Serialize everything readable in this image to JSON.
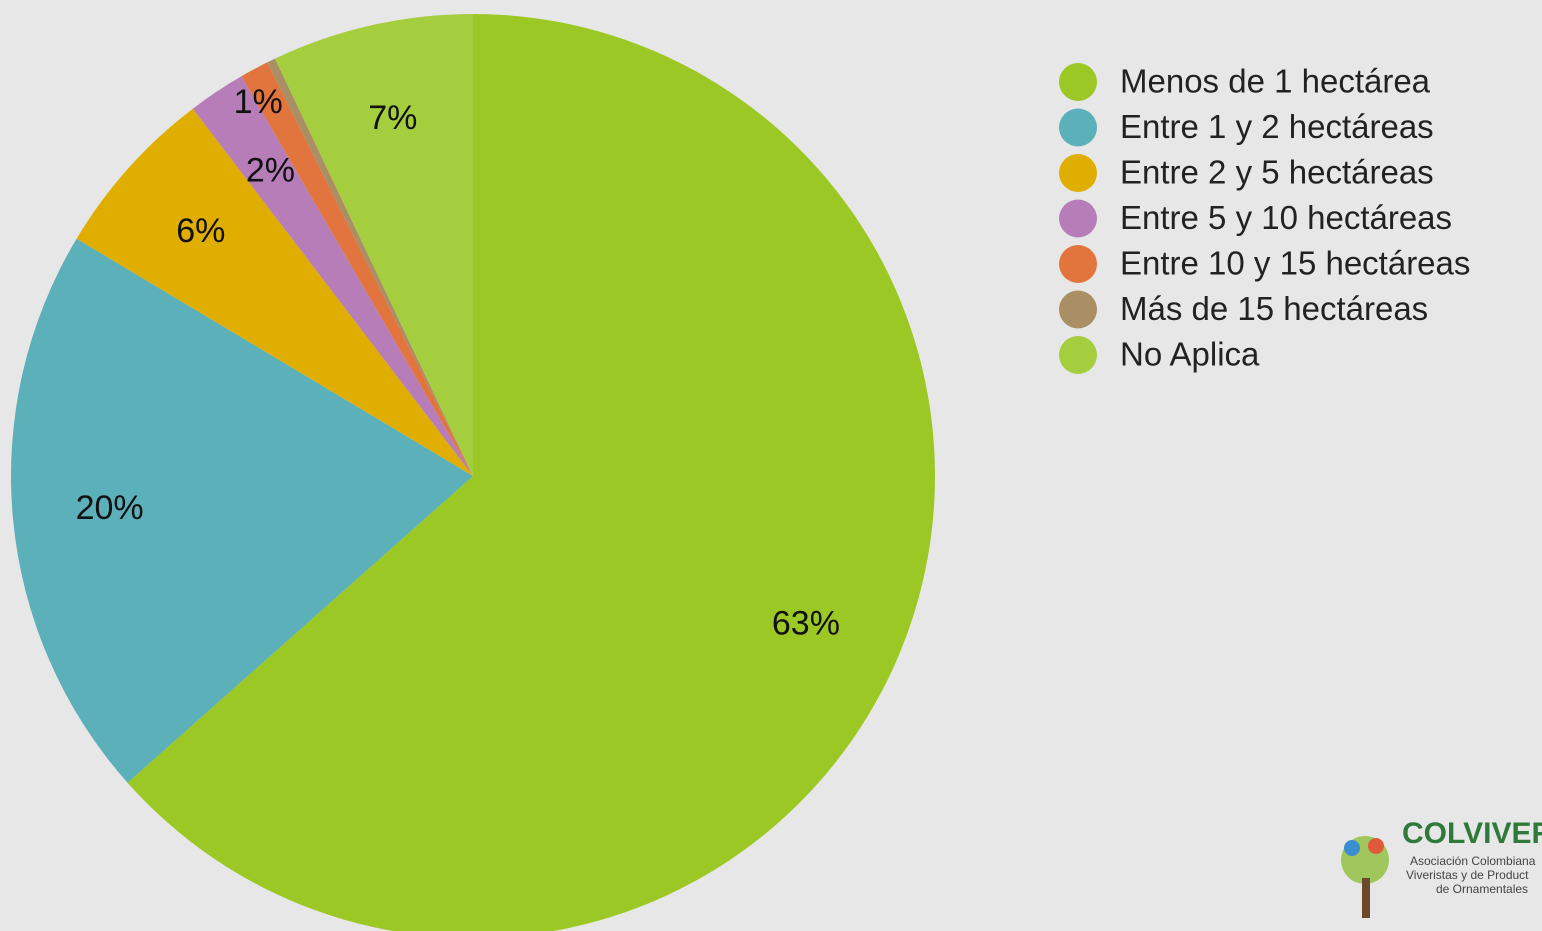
{
  "chart_data": {
    "type": "pie",
    "categories": [
      "Menos de 1 hectárea",
      "Entre 1 y 2 hectáreas",
      "Entre 2 y 5 hectáreas",
      "Entre 5 y 10 hectáreas",
      "Entre 10 y 15 hectáreas",
      "Más de 15 hectáreas",
      "No Aplica"
    ],
    "values": [
      63,
      20,
      6,
      2,
      1,
      0.3,
      7
    ],
    "value_labels": [
      "63%",
      "20%",
      "6%",
      "2%",
      "1%",
      null,
      "7%"
    ],
    "colors": [
      "#9bc824",
      "#5bb0ba",
      "#e0ae00",
      "#b67db9",
      "#e2753e",
      "#aa8e64",
      "#a5ce3f"
    ],
    "legend": "right"
  },
  "logo": {
    "name": "COLVIVER",
    "line1": "Asociación Colombiana",
    "line2": "Viveristas y de Product",
    "line3": "de Ornamentales"
  }
}
